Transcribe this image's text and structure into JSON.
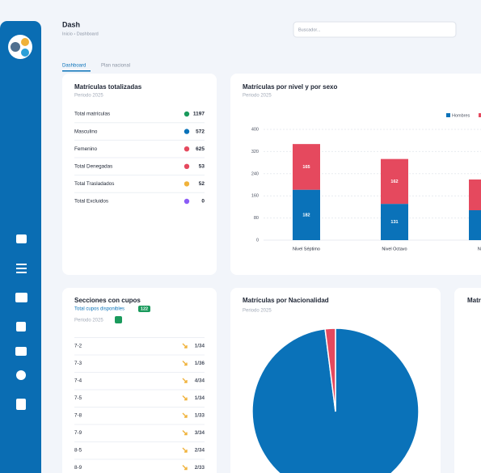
{
  "header": {
    "title": "Dash",
    "breadcrumb": "Inicio › Dashboard",
    "search_placeholder": "Buscador..."
  },
  "tabs": [
    "Dashboard",
    "Plan nacional"
  ],
  "totals": {
    "title": "Matrículas totalizadas",
    "period": "Periodo 2025",
    "rows": [
      {
        "label": "Total matrículas",
        "value": 1197
      },
      {
        "label": "Masculino",
        "value": 572
      },
      {
        "label": "Femenino",
        "value": 625
      },
      {
        "label": "Total Denegadas",
        "value": 53
      },
      {
        "label": "Total Trasladados",
        "value": 52
      },
      {
        "label": "Total Excluidos",
        "value": 0
      }
    ]
  },
  "level_chart": {
    "type": "bar",
    "stacked": true,
    "title": "Matrículas por nivel y por sexo",
    "subtitle": "Periodo 2025",
    "categories": [
      "Nivel Séptimo",
      "Nivel Octavo",
      "Nivel"
    ],
    "series": [
      {
        "name": "Hombres",
        "color": "#0a72b9",
        "values": [
          182,
          131,
          108
        ]
      },
      {
        "color": "#e5495e",
        "values": [
          165,
          162,
          111
        ]
      }
    ],
    "value_labels_shown": [
      true,
      true,
      false
    ],
    "ylim": [
      0,
      400
    ],
    "yticks": [
      0,
      80,
      160,
      240,
      320,
      400
    ],
    "grid": true
  },
  "sections": {
    "title": "Secciones con cupos",
    "available_label": "Total cupos disponibles",
    "available": 122,
    "period": "Periodo 2025",
    "rows": [
      {
        "section": "7-2",
        "quota": "1/34"
      },
      {
        "section": "7-3",
        "quota": "1/36"
      },
      {
        "section": "7-4",
        "quota": "4/34"
      },
      {
        "section": "7-5",
        "quota": "1/34"
      },
      {
        "section": "7-8",
        "quota": "1/33"
      },
      {
        "section": "7-9",
        "quota": "3/34"
      },
      {
        "section": "8-5",
        "quota": "2/34"
      },
      {
        "section": "8-9",
        "quota": "2/33"
      }
    ]
  },
  "nationality_chart": {
    "type": "pie",
    "title": "Matrículas por Nacionalidad",
    "subtitle": "Periodo 2025",
    "values": [
      98,
      2
    ],
    "colors": [
      "#0a72b9",
      "#e5495e"
    ]
  },
  "cut_card": {
    "title": "Matr"
  }
}
